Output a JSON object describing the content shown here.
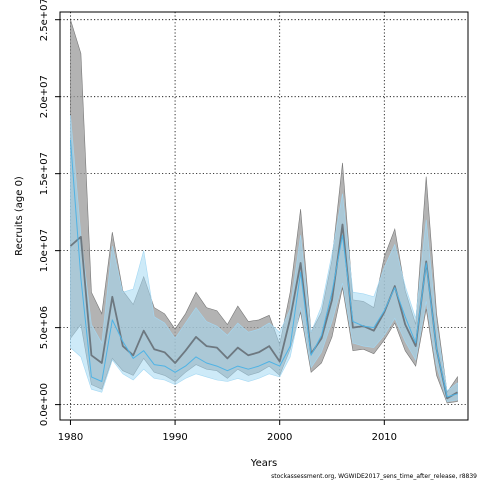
{
  "chart_data": {
    "type": "line",
    "title": "",
    "xlabel": "Years",
    "ylabel": "Recruits (age 0)",
    "xlim": [
      1979,
      2018
    ],
    "ylim": [
      -1000000,
      25500000
    ],
    "x_ticks": [
      1980,
      1990,
      2000,
      2010
    ],
    "x_tick_labels": [
      "1980",
      "1990",
      "2000",
      "2010"
    ],
    "y_ticks": [
      0,
      5000000,
      10000000,
      15000000,
      20000000,
      25000000
    ],
    "y_tick_labels": [
      "0.0e+00",
      "5.0e+06",
      "1.0e+07",
      "1.5e+07",
      "2.0e+07",
      "2.5e+07"
    ],
    "grid": true,
    "legend": "none",
    "credit": "stockassessment.org, WGWIDE2017_sens_time_after_release, r8839",
    "x": [
      1980,
      1981,
      1982,
      1983,
      1984,
      1985,
      1986,
      1987,
      1988,
      1989,
      1990,
      1991,
      1992,
      1993,
      1994,
      1995,
      1996,
      1997,
      1998,
      1999,
      2000,
      2001,
      2002,
      2003,
      2004,
      2005,
      2006,
      2007,
      2008,
      2009,
      2010,
      2011,
      2012,
      2013,
      2014,
      2015,
      2016,
      2017
    ],
    "series": [
      {
        "color": "#6d7880",
        "band_color": "#9a9a9a",
        "estimate": [
          10300000,
          10900000,
          3200000,
          2700000,
          7000000,
          3800000,
          3200000,
          4800000,
          3600000,
          3400000,
          2700000,
          3500000,
          4400000,
          3800000,
          3700000,
          3000000,
          3700000,
          3200000,
          3400000,
          3800000,
          2800000,
          5600000,
          9200000,
          3300000,
          4300000,
          6800000,
          11700000,
          5000000,
          5100000,
          4800000,
          6000000,
          7700000,
          5200000,
          3800000,
          9300000,
          3600000,
          400000,
          800000
        ],
        "lower": [
          4300000,
          5200000,
          1300000,
          1000000,
          3000000,
          2200000,
          1900000,
          3000000,
          2100000,
          1900000,
          1500000,
          2100000,
          2600000,
          2300000,
          2200000,
          1700000,
          2300000,
          1900000,
          2100000,
          2500000,
          1900000,
          3600000,
          6000000,
          2100000,
          2700000,
          4400000,
          7600000,
          3500000,
          3600000,
          3300000,
          4200000,
          5300000,
          3500000,
          2500000,
          6200000,
          1900000,
          100000,
          200000
        ],
        "upper": [
          25000000,
          22800000,
          7300000,
          5900000,
          11200000,
          7400000,
          6500000,
          8300000,
          6300000,
          5900000,
          4900000,
          5900000,
          7300000,
          6300000,
          6100000,
          5200000,
          6400000,
          5400000,
          5500000,
          5800000,
          3900000,
          7300000,
          12700000,
          4700000,
          6000000,
          9400000,
          15700000,
          6800000,
          6700000,
          6300000,
          9600000,
          11400000,
          7400000,
          5200000,
          14800000,
          5900000,
          800000,
          1800000
        ]
      },
      {
        "color": "#4fb3e5",
        "band_color": "#a4d8f3",
        "estimate": [
          17200000,
          8200000,
          1800000,
          1500000,
          5500000,
          4100000,
          3000000,
          3500000,
          2600000,
          2500000,
          2100000,
          2500000,
          3100000,
          2700000,
          2500000,
          2200000,
          2500000,
          2300000,
          2500000,
          2800000,
          2500000,
          3800000,
          8600000,
          3200000,
          4500000,
          7300000,
          11000000,
          5400000,
          5100000,
          5000000,
          6100000,
          7600000,
          5700000,
          4000000,
          9200000,
          3600000,
          500000,
          700000
        ],
        "lower": [
          3700000,
          3100000,
          1000000,
          800000,
          2900000,
          2000000,
          1600000,
          2300000,
          1700000,
          1600000,
          1300000,
          1700000,
          2000000,
          1800000,
          1600000,
          1500000,
          1700000,
          1500000,
          1700000,
          2000000,
          1800000,
          3100000,
          6300000,
          2400000,
          3400000,
          5400000,
          7900000,
          4000000,
          3800000,
          3700000,
          4500000,
          5600000,
          4100000,
          2900000,
          6700000,
          2500000,
          200000,
          300000
        ],
        "upper": [
          18800000,
          11000000,
          5200000,
          4000000,
          10300000,
          7300000,
          7500000,
          10000000,
          5700000,
          5300000,
          4300000,
          5300000,
          6300000,
          5400000,
          5100000,
          4500000,
          5300000,
          4700000,
          4900000,
          5300000,
          4700000,
          6200000,
          11000000,
          4700000,
          6400000,
          9800000,
          13700000,
          7300000,
          7200000,
          7000000,
          8900000,
          10400000,
          7700000,
          5600000,
          12000000,
          5100000,
          900000,
          1400000
        ]
      }
    ]
  }
}
